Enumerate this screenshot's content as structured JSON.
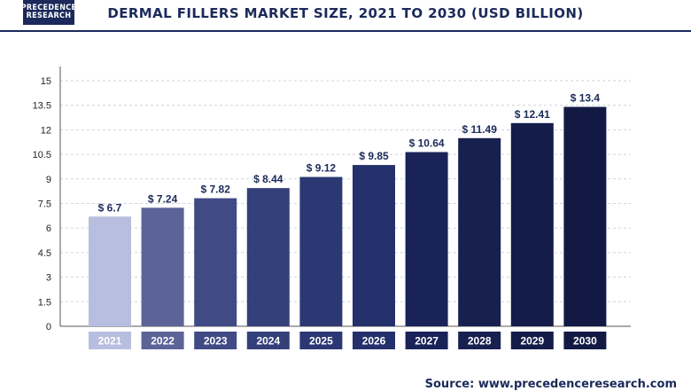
{
  "brand": {
    "line1": "PRECEDENCE",
    "line2": "RESEARCH"
  },
  "source": "Source: www.precedenceresearch.com",
  "chart_data": {
    "type": "bar",
    "title": "DERMAL FILLERS MARKET SIZE, 2021 TO 2030 (USD BILLION)",
    "xlabel": "",
    "ylabel": "",
    "categories": [
      "2021",
      "2022",
      "2023",
      "2024",
      "2025",
      "2026",
      "2027",
      "2028",
      "2029",
      "2030"
    ],
    "values": [
      6.7,
      7.24,
      7.82,
      8.44,
      9.12,
      9.85,
      10.64,
      11.49,
      12.41,
      13.4
    ],
    "value_labels": [
      "$ 6.7",
      "$ 7.24",
      "$ 7.82",
      "$ 8.44",
      "$ 9.12",
      "$ 9.85",
      "$ 10.64",
      "$ 11.49",
      "$ 12.41",
      "$ 13.4"
    ],
    "ylim": [
      0,
      15
    ],
    "yticks": [
      "0",
      "1.5",
      "3",
      "4.5",
      "6",
      "7.5",
      "9",
      "10.5",
      "12",
      "13.5",
      "15"
    ],
    "grid": true,
    "bar_colors": [
      "#b7bedf",
      "#5b6397",
      "#404a85",
      "#34407a",
      "#2c3874",
      "#24306b",
      "#1a2358",
      "#17204f",
      "#141c49",
      "#121a44"
    ],
    "label_color": "#1b2a5a"
  }
}
